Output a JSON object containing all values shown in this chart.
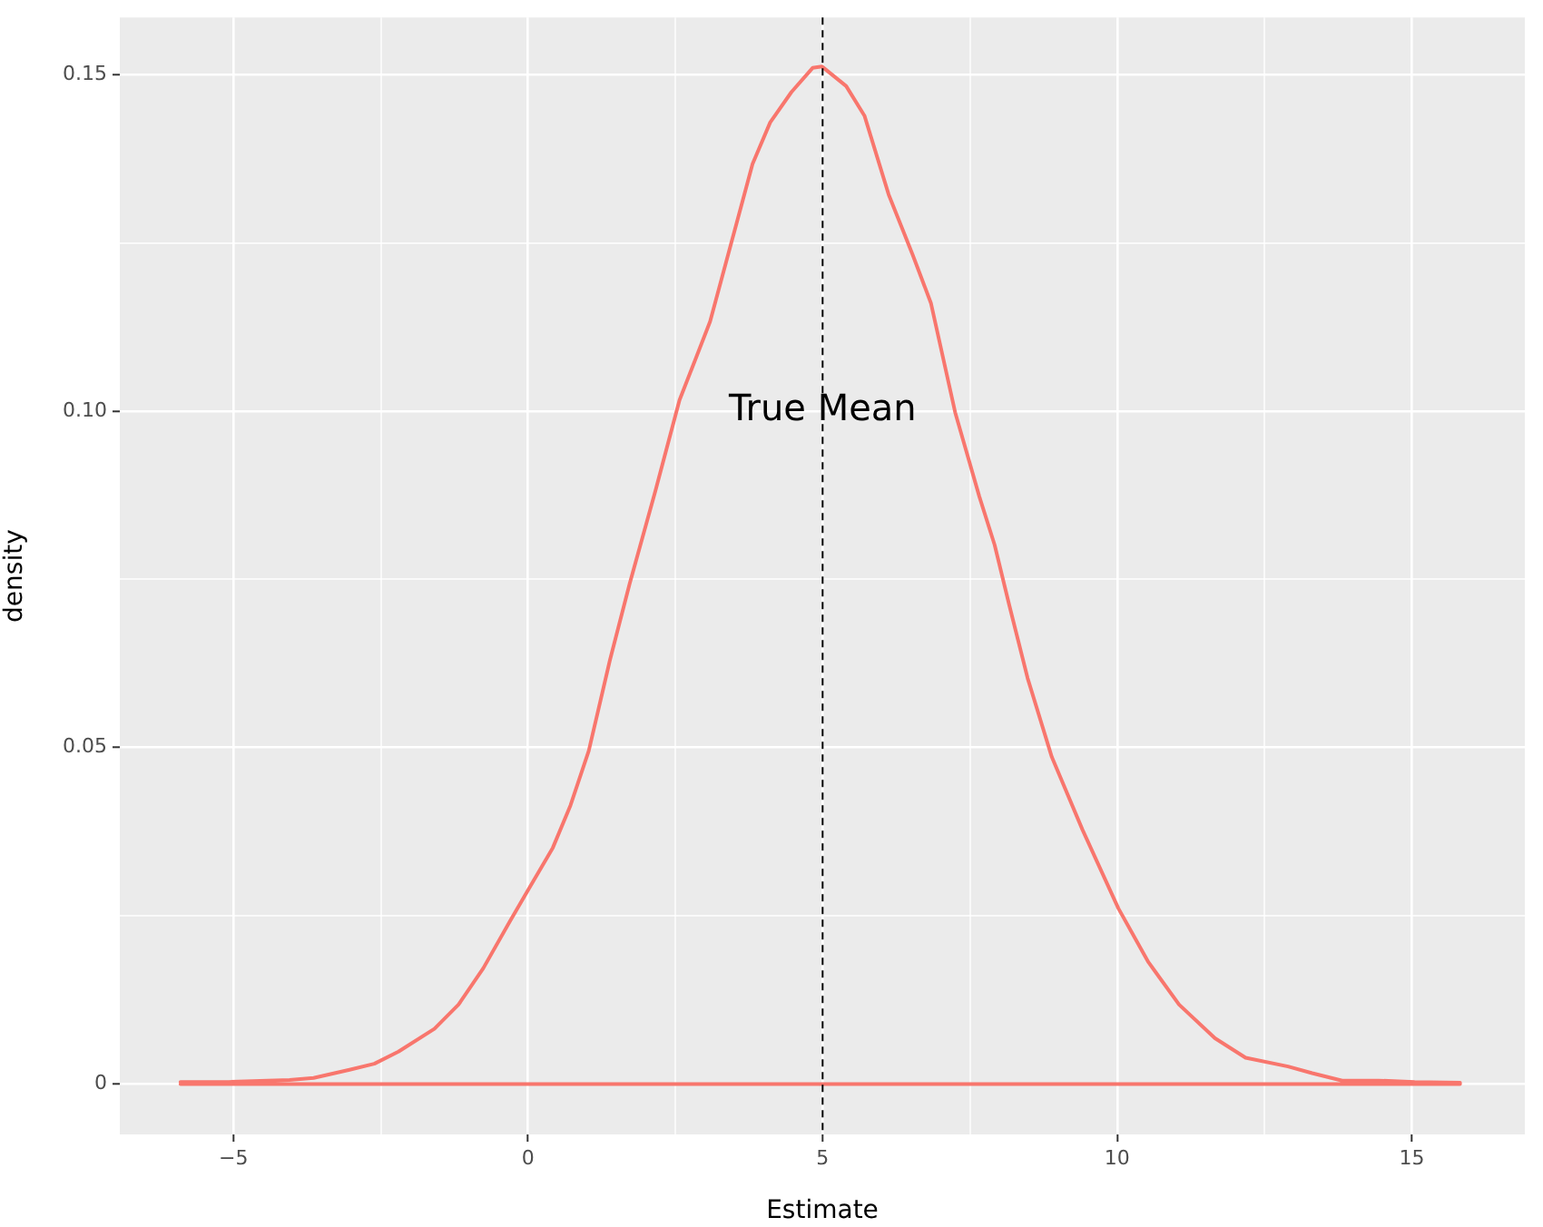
{
  "chart_data": {
    "type": "line",
    "xlabel": "Estimate",
    "ylabel": "density",
    "series": [
      {
        "color": "#f8766d",
        "x": [
          -5.9,
          -5.08,
          -4.05,
          -3.64,
          -3.03,
          -2.61,
          -2.2,
          -1.59,
          -1.18,
          -0.76,
          -0.3,
          0.0,
          0.42,
          0.72,
          1.03,
          1.39,
          1.72,
          2.16,
          2.57,
          3.09,
          3.45,
          3.81,
          4.11,
          4.47,
          4.83,
          4.99,
          5.4,
          5.71,
          6.12,
          6.53,
          6.84,
          7.25,
          7.66,
          7.92,
          8.17,
          8.48,
          8.89,
          9.41,
          10.02,
          10.53,
          11.05,
          11.66,
          12.18,
          12.9,
          13.31,
          13.82,
          14.44,
          15.05,
          15.82,
          15.82,
          -5.9
        ],
        "values": [
          0.0003,
          0.0003,
          0.0006,
          0.0009,
          0.0021,
          0.003,
          0.0048,
          0.0082,
          0.0118,
          0.0172,
          0.0243,
          0.0288,
          0.0351,
          0.0414,
          0.0495,
          0.063,
          0.0742,
          0.0881,
          0.1016,
          0.1133,
          0.125,
          0.1367,
          0.1429,
          0.1474,
          0.151,
          0.1512,
          0.1483,
          0.1439,
          0.1322,
          0.1232,
          0.116,
          0.0998,
          0.0873,
          0.0801,
          0.0711,
          0.0603,
          0.0486,
          0.0378,
          0.0261,
          0.0181,
          0.0118,
          0.0068,
          0.0039,
          0.0026,
          0.0016,
          0.0005,
          0.0005,
          0.0003,
          0.0002,
          0,
          0
        ]
      }
    ],
    "xlim": [
      -6.93,
      16.92
    ],
    "ylim": [
      -0.0075,
      0.1585
    ],
    "xticks": [
      {
        "value": -5,
        "label": "−5"
      },
      {
        "value": -2.5,
        "label": null
      },
      0,
      {
        "value": 2.5,
        "label": null
      },
      5,
      {
        "value": 7.5,
        "label": null
      },
      10,
      {
        "value": 12.5,
        "label": null
      },
      15
    ],
    "yticks": [
      0,
      {
        "value": 0.025,
        "label": null
      },
      0.05,
      {
        "value": 0.075,
        "label": null
      },
      {
        "value": 0.1,
        "label": "0.10"
      },
      {
        "value": 0.125,
        "label": null
      },
      0.15
    ],
    "grid": true,
    "ref_lines": [
      {
        "axis": "x",
        "value": 5,
        "color": "#000000",
        "line_style": "dashed"
      }
    ],
    "annotations": [
      {
        "text": "True Mean",
        "x": 5,
        "y": 0.1
      }
    ]
  }
}
